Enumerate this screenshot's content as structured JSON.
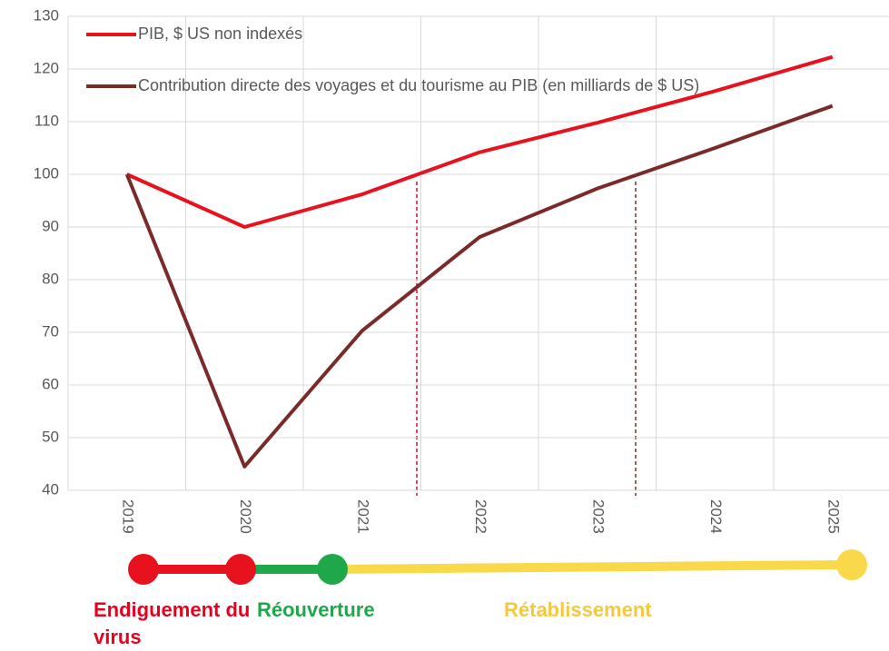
{
  "chart_data": {
    "type": "line",
    "categories": [
      "2019",
      "2020",
      "2021",
      "2022",
      "2023",
      "2024",
      "2025"
    ],
    "series": [
      {
        "name": "PIB, $ US non indexés",
        "color": "#e8111e",
        "values": [
          100,
          90,
          96.2,
          104.2,
          109.8,
          115.8,
          122.3
        ]
      },
      {
        "name": "Contribution directe des voyages et du tourisme au PIB (en milliards de $ US)",
        "color": "#7b2a2a",
        "values": [
          100,
          44.5,
          70.3,
          88.1,
          97.3,
          105,
          113
        ]
      }
    ],
    "ylim": [
      40,
      130
    ],
    "yticks": [
      40,
      50,
      60,
      70,
      80,
      90,
      100,
      110,
      120,
      130
    ],
    "grid": true,
    "legend": "top-left",
    "annotations": [
      {
        "text": "Endiguement du virus",
        "color": "#e8001c"
      },
      {
        "text": "Réouverture",
        "color": "#1fa84a"
      },
      {
        "text": "Rétablissement",
        "color": "#f5c842"
      }
    ]
  }
}
